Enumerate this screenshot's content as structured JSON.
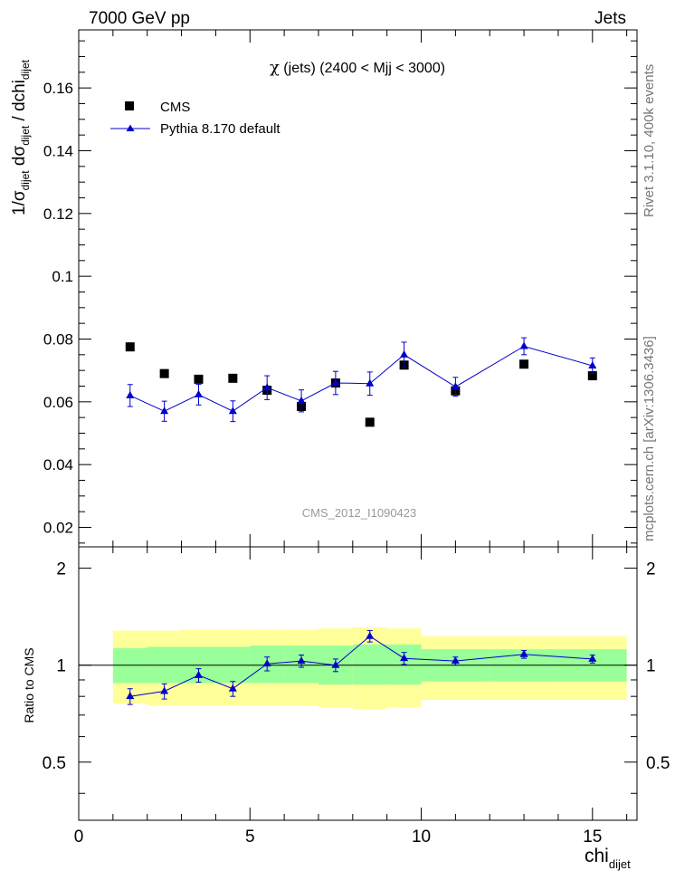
{
  "header": {
    "left": "7000 GeV pp",
    "right": "Jets"
  },
  "side_labels": {
    "rivet": "Rivet 3.1.10,  400k events",
    "mcplots": "mcplots.cern.ch [arXiv:1306.3436]"
  },
  "chart_data": {
    "type": "scatter",
    "title": {
      "symbol": "χ",
      "text": " (jets) (2400 < Mjj < 3000)"
    },
    "watermark": "CMS_2012_I1090423",
    "xlabel": {
      "main": "chi",
      "sub": "dijet"
    },
    "ylabel": {
      "p1": "1/σ",
      "s1": "dijet",
      "p2": " dσ",
      "s2": "dijet",
      "p3": " / dchi",
      "s3": "dijet"
    },
    "ratio_ylabel": "Ratio to CMS",
    "xlim": [
      0,
      16.3
    ],
    "ylim": [
      0.0138,
      0.1785
    ],
    "ratio_ylim": [
      0.33,
      2.33
    ],
    "ratio_log": true,
    "x_ticks": [
      0,
      5,
      10,
      15
    ],
    "x_tick_labels": [
      "0",
      "5",
      "10",
      "15"
    ],
    "y_ticks": [
      0.02,
      0.04,
      0.06,
      0.08,
      0.1,
      0.12,
      0.14,
      0.16
    ],
    "y_tick_labels": [
      "0.02",
      "0.04",
      "0.06",
      "0.08",
      "0.1",
      "0.12",
      "0.14",
      "0.16"
    ],
    "ratio_ticks": [
      0.5,
      1,
      2
    ],
    "ratio_tick_labels": [
      "0.5",
      "1",
      "2"
    ],
    "legend_position": "top-left",
    "bins": [
      [
        1,
        2
      ],
      [
        2,
        3
      ],
      [
        3,
        4
      ],
      [
        4,
        5
      ],
      [
        5,
        6
      ],
      [
        6,
        7
      ],
      [
        7,
        8
      ],
      [
        8,
        9
      ],
      [
        9,
        10
      ],
      [
        10,
        12
      ],
      [
        12,
        14
      ],
      [
        14,
        16
      ]
    ],
    "x": [
      1.5,
      2.5,
      3.5,
      4.5,
      5.5,
      6.5,
      7.5,
      8.5,
      9.5,
      11,
      13,
      15
    ],
    "series": [
      {
        "name": "CMS",
        "color": "#000000",
        "marker": "square",
        "values": [
          0.0775,
          0.069,
          0.0672,
          0.0675,
          0.0637,
          0.0585,
          0.066,
          0.0535,
          0.0717,
          0.0635,
          0.072,
          0.0683
        ]
      },
      {
        "name": "Pythia 8.170 default",
        "color": "#0000cc",
        "marker": "triangle",
        "values": [
          0.062,
          0.057,
          0.0623,
          0.057,
          0.0645,
          0.0603,
          0.066,
          0.0658,
          0.075,
          0.0648,
          0.0777,
          0.0715
        ],
        "errors": [
          0.0035,
          0.0032,
          0.0033,
          0.0033,
          0.0038,
          0.0035,
          0.0037,
          0.0037,
          0.004,
          0.003,
          0.0027,
          0.0025
        ]
      }
    ],
    "ratio": {
      "values": [
        0.8,
        0.83,
        0.93,
        0.845,
        1.01,
        1.03,
        1.0,
        1.23,
        1.05,
        1.03,
        1.08,
        1.045
      ],
      "errors": [
        0.045,
        0.045,
        0.045,
        0.045,
        0.05,
        0.045,
        0.045,
        0.05,
        0.045,
        0.03,
        0.03,
        0.03
      ],
      "band_inner": [
        [
          0.88,
          1.13
        ],
        [
          0.88,
          1.14
        ],
        [
          0.88,
          1.14
        ],
        [
          0.88,
          1.14
        ],
        [
          0.88,
          1.15
        ],
        [
          0.88,
          1.15
        ],
        [
          0.87,
          1.15
        ],
        [
          0.87,
          1.16
        ],
        [
          0.87,
          1.16
        ],
        [
          0.89,
          1.12
        ],
        [
          0.89,
          1.12
        ],
        [
          0.89,
          1.12
        ]
      ],
      "band_outer": [
        [
          0.76,
          1.28
        ],
        [
          0.75,
          1.28
        ],
        [
          0.75,
          1.29
        ],
        [
          0.75,
          1.29
        ],
        [
          0.75,
          1.29
        ],
        [
          0.75,
          1.29
        ],
        [
          0.74,
          1.3
        ],
        [
          0.73,
          1.31
        ],
        [
          0.74,
          1.3
        ],
        [
          0.78,
          1.23
        ],
        [
          0.78,
          1.23
        ],
        [
          0.78,
          1.23
        ]
      ],
      "band_inner_color": "#99ff99",
      "band_outer_color": "#ffff99"
    }
  }
}
